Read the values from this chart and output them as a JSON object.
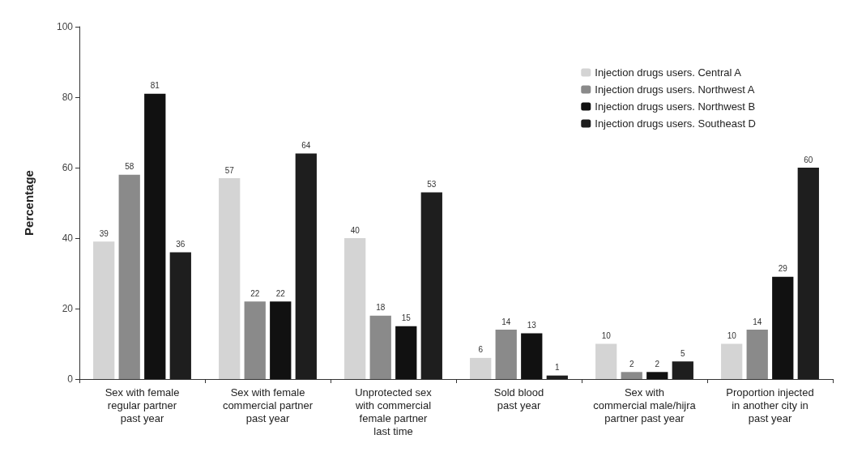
{
  "chart_data": {
    "type": "bar",
    "ylabel": "Percentage",
    "categories": [
      "Sex with female\nregular partner\npast year",
      "Sex with female\ncommercial partner\npast year",
      "Unprotected sex\nwith commercial\nfemale partner\nlast time",
      "Sold blood\npast year",
      "Sex with\ncommercial male/hijra\npartner past year",
      "Proportion injected\nin another city in\npast year"
    ],
    "series": [
      {
        "name": "Injection drugs users. Central A",
        "color": "#d4d4d4",
        "values": [
          39,
          57,
          40,
          6,
          10,
          10
        ]
      },
      {
        "name": "Injection drugs users. Northwest A",
        "color": "#8a8a8a",
        "values": [
          58,
          22,
          18,
          14,
          2,
          14
        ]
      },
      {
        "name": "Injection drugs users. Northwest B",
        "color": "#111111",
        "values": [
          81,
          22,
          15,
          13,
          2,
          29
        ]
      },
      {
        "name": "Injection drugs users. Southeast D",
        "color": "#1e1e1e",
        "values": [
          36,
          64,
          53,
          1,
          5,
          60
        ]
      }
    ],
    "ylim": [
      0,
      100
    ],
    "yticks": [
      0,
      20,
      40,
      60,
      80,
      100
    ],
    "data_labels": true,
    "grid": false,
    "legend": "top right"
  }
}
